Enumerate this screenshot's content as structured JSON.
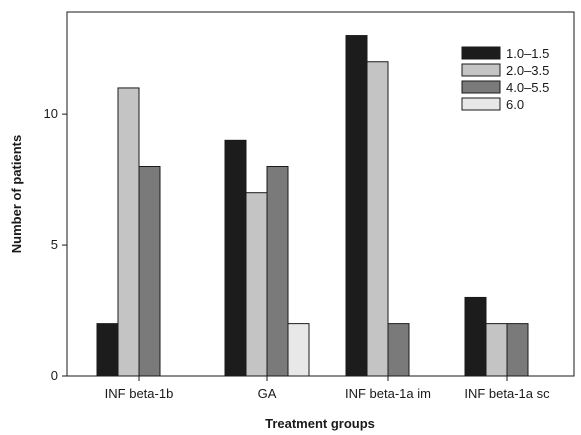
{
  "chart_data": {
    "type": "bar",
    "title": "",
    "xlabel": "Treatment groups",
    "ylabel": "Number of patients",
    "categories": [
      "INF beta-1b",
      "GA",
      "INF beta-1a im",
      "INF beta-1a sc"
    ],
    "ylim": [
      0,
      13.9
    ],
    "yticks": [
      0,
      5,
      10
    ],
    "grid": false,
    "legend_position": "top-right",
    "series": [
      {
        "name": "1.0–1.5",
        "color": "#1c1c1c",
        "values": [
          2,
          9,
          13,
          3
        ]
      },
      {
        "name": "2.0–3.5",
        "color": "#c4c4c4",
        "values": [
          11,
          7,
          12,
          2
        ]
      },
      {
        "name": "4.0–5.5",
        "color": "#7a7a7a",
        "values": [
          8,
          8,
          2,
          2
        ]
      },
      {
        "name": "6.0",
        "color": "#e8e8e8",
        "values": [
          0,
          2,
          0,
          0
        ]
      }
    ]
  }
}
